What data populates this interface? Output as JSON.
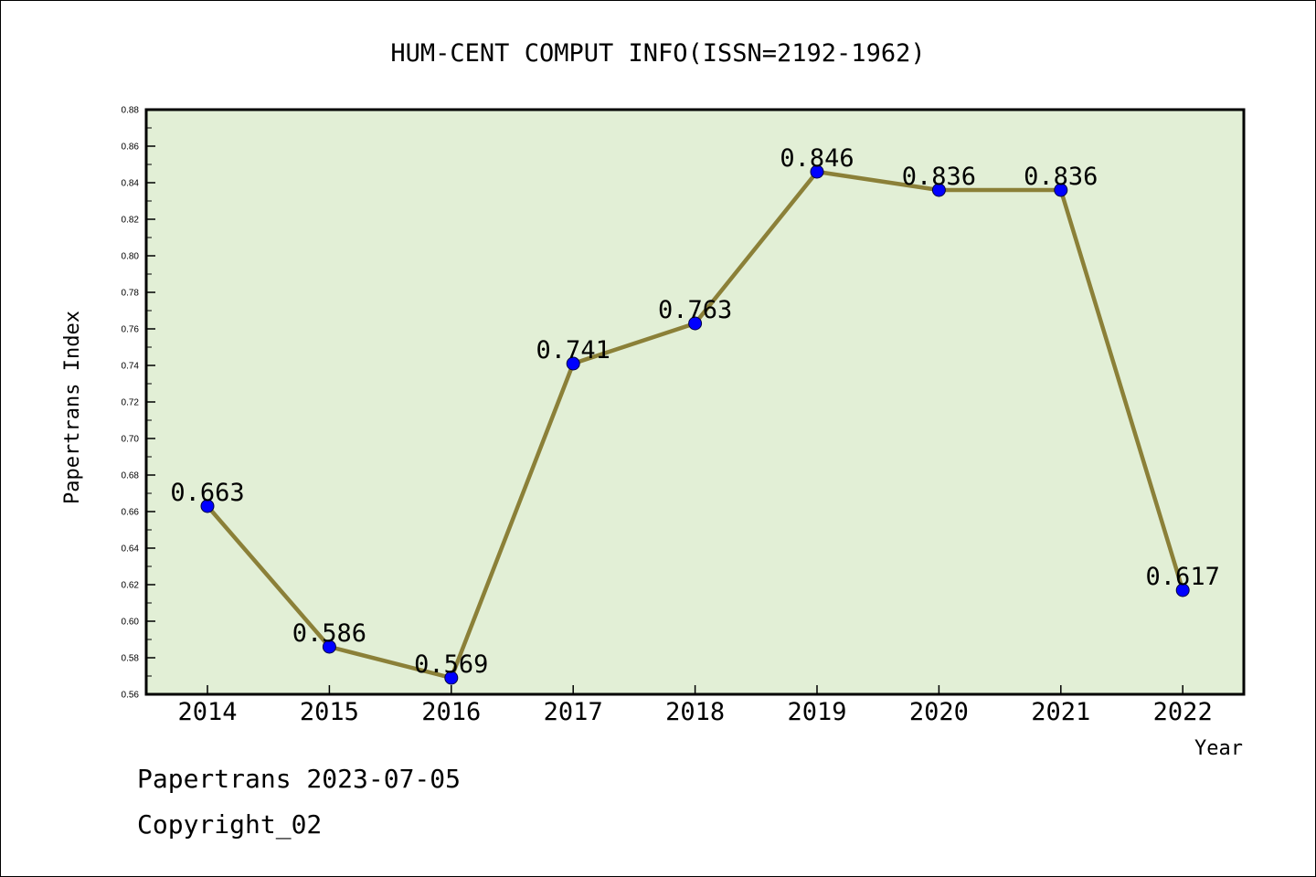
{
  "chart_data": {
    "type": "line",
    "title": "HUM-CENT COMPUT INFO(ISSN=2192-1962)",
    "xlabel": "Year",
    "ylabel": "Papertrans Index",
    "categories": [
      "2014",
      "2015",
      "2016",
      "2017",
      "2018",
      "2019",
      "2020",
      "2021",
      "2022"
    ],
    "series": [
      {
        "values": [
          0.663,
          0.586,
          0.569,
          0.741,
          0.763,
          0.846,
          0.836,
          0.836,
          0.617
        ],
        "data_labels": [
          "0.663",
          "0.586",
          "0.569",
          "0.741",
          "0.763",
          "0.846",
          "0.836",
          "0.836",
          "0.617"
        ]
      }
    ],
    "ylim": [
      0.56,
      0.88
    ],
    "yticks": [
      "0.56",
      "0.58",
      "0.60",
      "0.62",
      "0.64",
      "0.66",
      "0.68",
      "0.70",
      "0.72",
      "0.74",
      "0.76",
      "0.78",
      "0.80",
      "0.82",
      "0.84",
      "0.86",
      "0.88"
    ],
    "grid": false,
    "legend": "none",
    "colors": {
      "plot_background": "#e2efd6",
      "line": "#8b8038",
      "marker": "#0000ff",
      "axes": "#000000"
    }
  },
  "footer": {
    "line1": "Papertrans 2023-07-05",
    "line2": "Copyright_02"
  }
}
